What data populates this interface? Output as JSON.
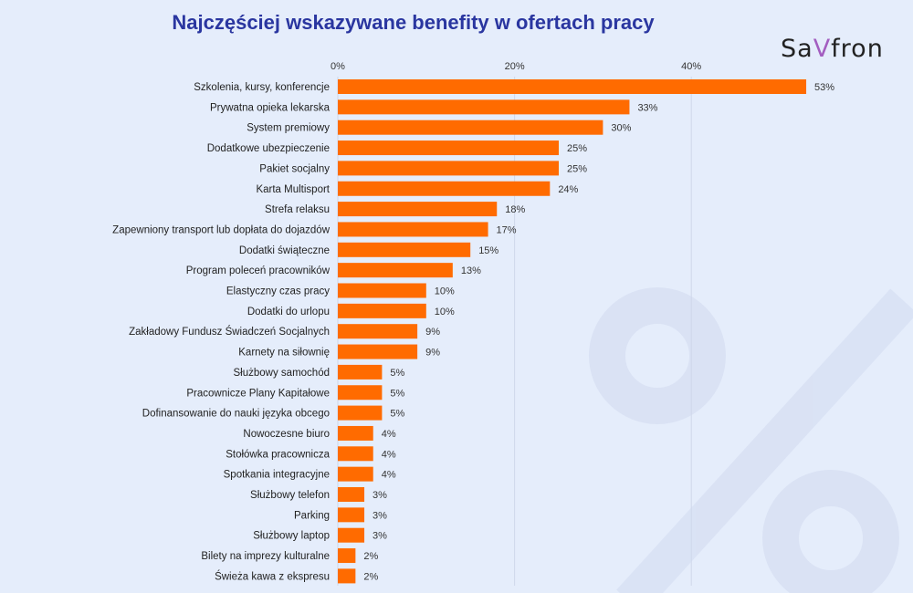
{
  "logo": "SaVfron",
  "chart_data": {
    "type": "bar",
    "orientation": "horizontal",
    "title": "Najczęściej wskazywane benefity w ofertach pracy",
    "xlabel": "",
    "ylabel": "",
    "xlim": [
      0,
      53
    ],
    "xticks": [
      "0%",
      "20%",
      "40%"
    ],
    "xtick_values": [
      0,
      20,
      40
    ],
    "grid": true,
    "bar_color": "#ff6b00",
    "categories": [
      "Szkolenia, kursy, konferencje",
      "Prywatna opieka lekarska",
      "System premiowy",
      "Dodatkowe ubezpieczenie",
      "Pakiet socjalny",
      "Karta Multisport",
      "Strefa relaksu",
      "Zapewniony transport lub dopłata do dojazdów",
      "Dodatki świąteczne",
      "Program poleceń pracowników",
      "Elastyczny czas pracy",
      "Dodatki do urlopu",
      "Zakładowy Fundusz Świadczeń Socjalnych",
      "Karnety na siłownię",
      "Służbowy samochód",
      "Pracownicze Plany Kapitałowe",
      "Dofinansowanie do nauki języka obcego",
      "Nowoczesne biuro",
      "Stołówka pracownicza",
      "Spotkania integracyjne",
      "Służbowy telefon",
      "Parking",
      "Służbowy laptop",
      "Bilety na imprezy kulturalne",
      "Świeża kawa z ekspresu"
    ],
    "values": [
      53,
      33,
      30,
      25,
      25,
      24,
      18,
      17,
      15,
      13,
      10,
      10,
      9,
      9,
      5,
      5,
      5,
      4,
      4,
      4,
      3,
      3,
      3,
      2,
      2
    ]
  }
}
